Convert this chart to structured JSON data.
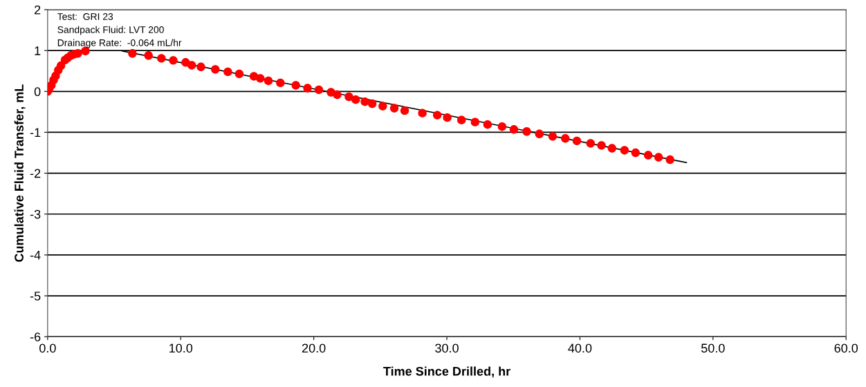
{
  "chart_data": {
    "type": "scatter",
    "xlabel": "Time Since Drilled, hr",
    "ylabel": "Cumulative Fluid Transfer, mL",
    "annotations": [
      "Test:  GRI 23",
      "Sandpack Fluid: LVT 200",
      "Drainage Rate:  -0.064 mL/hr"
    ],
    "xlim": [
      0,
      60
    ],
    "xticks": [
      {
        "value": 0,
        "label": "0.0"
      },
      {
        "value": 10,
        "label": "10.0"
      },
      {
        "value": 20,
        "label": "20.0"
      },
      {
        "value": 30,
        "label": "30.0"
      },
      {
        "value": 40,
        "label": "40.0"
      },
      {
        "value": 50,
        "label": "50.0"
      },
      {
        "value": 60,
        "label": "60.0"
      }
    ],
    "ylim": [
      -6,
      2
    ],
    "yticks": [
      -6,
      -5,
      -4,
      -3,
      -2,
      -1,
      0,
      1,
      2
    ],
    "grid": "y",
    "series": [
      {
        "marker": "circle",
        "color": "#ff0000",
        "x": [
          0,
          0.1,
          0.28,
          0.45,
          0.6,
          0.8,
          1.0,
          1.31,
          1.5,
          1.75,
          2.0,
          2.27,
          2.84,
          6.37,
          7.58,
          8.55,
          9.44,
          10.37,
          10.83,
          11.52,
          12.6,
          13.54,
          14.4,
          15.5,
          15.98,
          16.59,
          17.49,
          18.65,
          19.53,
          20.38,
          21.29,
          21.76,
          22.64,
          23.15,
          23.84,
          24.39,
          25.18,
          26.05,
          26.83,
          28.16,
          29.28,
          30.03,
          31.1,
          32.12,
          33.06,
          34.15,
          35.04,
          36.0,
          36.95,
          37.95,
          38.9,
          39.77,
          40.8,
          41.62,
          42.41,
          43.35,
          44.18,
          45.13,
          45.91,
          46.77
        ],
        "values": [
          0,
          0.05,
          0.15,
          0.28,
          0.38,
          0.52,
          0.63,
          0.77,
          0.82,
          0.88,
          0.91,
          0.93,
          0.99,
          0.93,
          0.88,
          0.81,
          0.76,
          0.71,
          0.64,
          0.6,
          0.54,
          0.48,
          0.43,
          0.37,
          0.32,
          0.26,
          0.21,
          0.15,
          0.08,
          0.04,
          -0.02,
          -0.08,
          -0.13,
          -0.2,
          -0.25,
          -0.3,
          -0.36,
          -0.41,
          -0.47,
          -0.53,
          -0.58,
          -0.64,
          -0.7,
          -0.75,
          -0.81,
          -0.86,
          -0.93,
          -0.98,
          -1.04,
          -1.1,
          -1.15,
          -1.21,
          -1.27,
          -1.32,
          -1.39,
          -1.44,
          -1.5,
          -1.56,
          -1.61,
          -1.67
        ]
      },
      {
        "type": "line",
        "marker": "none",
        "color": "#000000",
        "x": [
          5.6,
          48.0
        ],
        "values": [
          0.99,
          -1.74
        ]
      }
    ]
  }
}
